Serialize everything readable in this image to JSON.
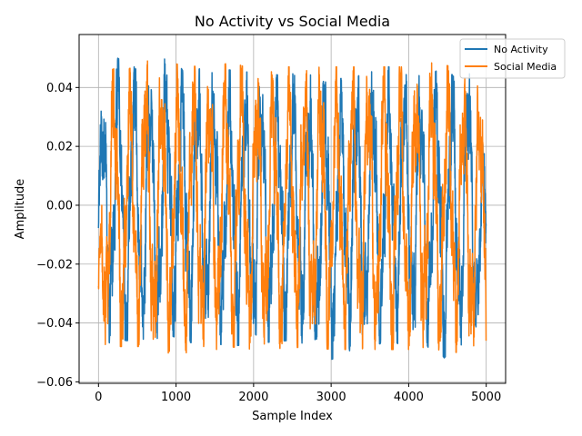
{
  "chart_data": {
    "type": "line",
    "title": "No Activity vs Social Media",
    "xlabel": "Sample Index",
    "ylabel": "Amplitude",
    "xlim": [
      -250,
      5250
    ],
    "ylim": [
      -0.0605,
      0.058
    ],
    "xticks": [
      0,
      1000,
      2000,
      3000,
      4000,
      5000
    ],
    "yticks": [
      -0.06,
      -0.04,
      -0.02,
      0.0,
      0.02,
      0.04
    ],
    "ytick_labels": [
      "−0.06",
      "−0.04",
      "−0.02",
      "0.00",
      "0.02",
      "0.04"
    ],
    "grid": true,
    "legend_position": "top-right",
    "num_samples": 5000,
    "series": [
      {
        "name": "No Activity",
        "color": "#1f77b4",
        "envelope_x": [
          0,
          130,
          170,
          460,
          720,
          930,
          1100,
          1400,
          1530,
          1680,
          2000,
          2430,
          2660,
          2880,
          3350,
          3650,
          3950,
          4200,
          4380,
          4600,
          4800,
          5000
        ],
        "envelope_top": [
          0.027,
          0.046,
          0.051,
          0.047,
          0.044,
          0.053,
          0.045,
          0.047,
          0.043,
          0.046,
          0.045,
          0.044,
          0.046,
          0.042,
          0.044,
          0.047,
          0.047,
          0.043,
          0.046,
          0.044,
          0.048,
          0.013
        ],
        "envelope_bottom": [
          -0.035,
          -0.047,
          -0.046,
          -0.046,
          -0.047,
          -0.044,
          -0.047,
          -0.046,
          -0.047,
          -0.048,
          -0.047,
          -0.046,
          -0.047,
          -0.054,
          -0.048,
          -0.047,
          -0.047,
          -0.046,
          -0.054,
          -0.048,
          -0.047,
          -0.045
        ]
      },
      {
        "name": "Social Media",
        "color": "#ff7f0e",
        "envelope_x": [
          0,
          80,
          300,
          550,
          800,
          1000,
          1300,
          1600,
          1670,
          2000,
          2300,
          2700,
          3000,
          3300,
          3650,
          3950,
          4200,
          4350,
          4600,
          4800,
          5000
        ],
        "envelope_top": [
          -0.021,
          0.049,
          0.044,
          0.05,
          0.047,
          0.048,
          0.047,
          0.047,
          0.049,
          0.046,
          0.047,
          0.047,
          0.047,
          0.047,
          0.047,
          0.047,
          0.049,
          0.048,
          0.047,
          0.041,
          0.04
        ],
        "envelope_bottom": [
          -0.054,
          -0.048,
          -0.048,
          -0.048,
          -0.055,
          -0.051,
          -0.049,
          -0.049,
          -0.048,
          -0.049,
          -0.049,
          -0.048,
          -0.049,
          -0.049,
          -0.049,
          -0.049,
          -0.049,
          -0.049,
          -0.05,
          -0.05,
          -0.046
        ]
      }
    ]
  }
}
